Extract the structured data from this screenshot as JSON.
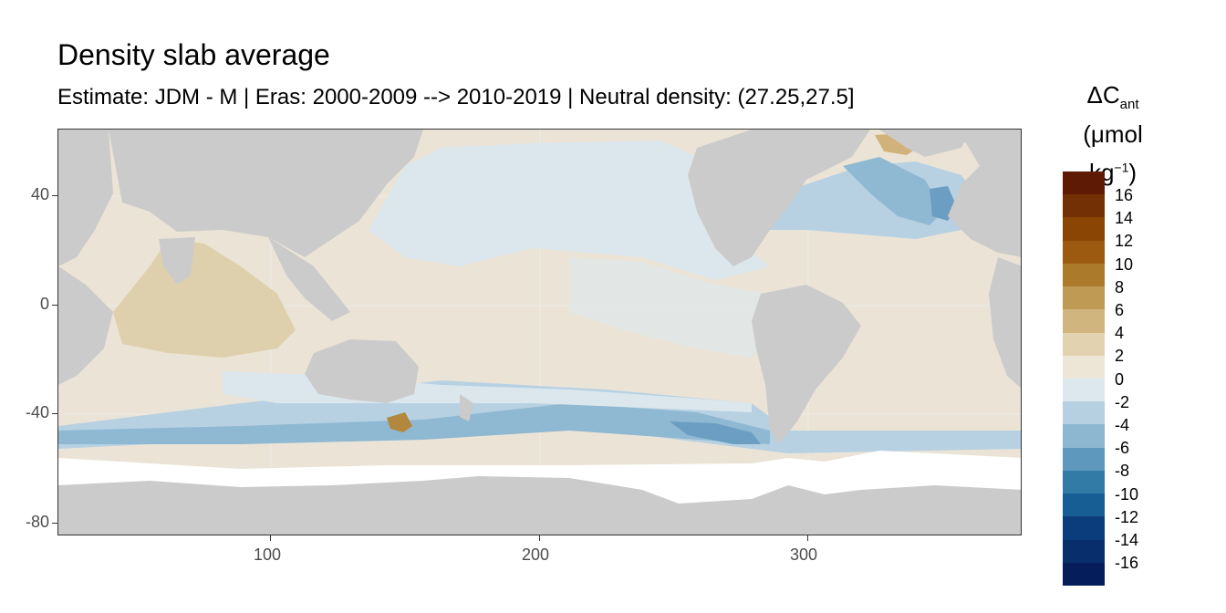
{
  "title": "Density slab average",
  "subtitle": "Estimate: JDM - M | Eras: 2000-2009 --> 2010-2019 | Neutral density: (27.25,27.5]",
  "legend": {
    "title_main": "ΔC",
    "title_sub": "ant",
    "unit_pre": "(μmol kg",
    "unit_sup": "−1",
    "unit_post": ")",
    "labels": [
      "16",
      "14",
      "12",
      "10",
      "8",
      "6",
      "4",
      "2",
      "0",
      "-2",
      "-4",
      "-6",
      "-8",
      "-10",
      "-12",
      "-14",
      "-16"
    ],
    "colors": [
      "#5f1a05",
      "#733005",
      "#8a4505",
      "#9b5a0f",
      "#ab7a2a",
      "#bf9a55",
      "#d1b57f",
      "#e3d2af",
      "#ede5d6",
      "#dde8ee",
      "#b6d0e1",
      "#8db7d1",
      "#5f98bd",
      "#337ba7",
      "#175e95",
      "#0b3d7d",
      "#082f6b",
      "#061d5c"
    ]
  },
  "axes": {
    "x_ticks": [
      "100",
      "200",
      "300"
    ],
    "y_ticks": [
      "40",
      "0",
      "-40",
      "-80"
    ]
  },
  "map_colors": {
    "land": "#cbcbcb",
    "ice_or_nodata": "#ffffff",
    "grid": "#ebebeb",
    "ocean_base": "#ebe4d6",
    "pacific_neg": "#dce7ed",
    "band_neg2": "#b7d1e3",
    "band_neg4": "#8fb8d2",
    "band_neg6": "#6b9ec2",
    "pos2": "#dfd0ad",
    "pos4": "#d1b27b",
    "pos6": "#b4873e",
    "pos8": "#9a6420"
  }
}
